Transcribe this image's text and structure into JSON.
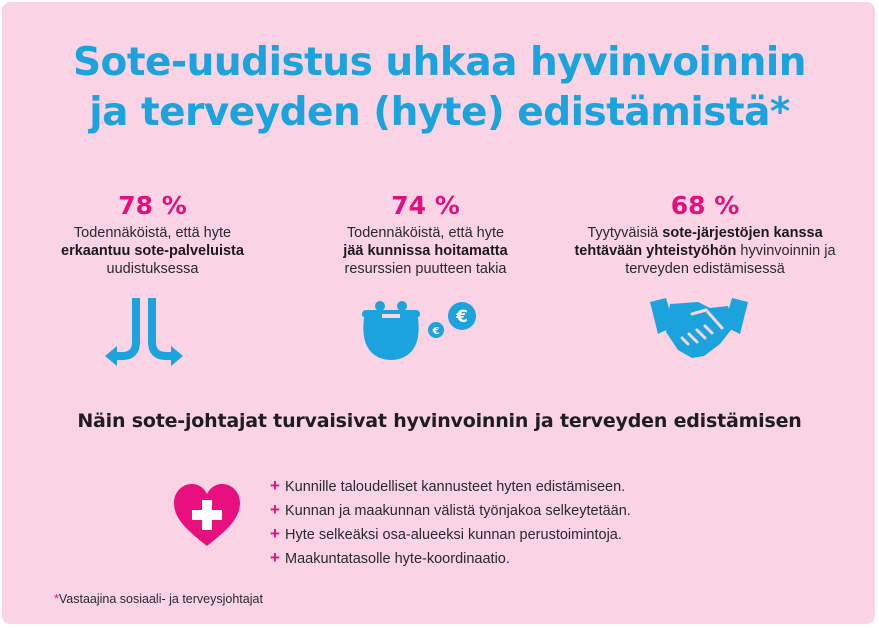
{
  "title": {
    "line1": "Sote-uudistus uhkaa hyvinvoinnin",
    "line2": "ja terveyden (hyte) edistämistä*"
  },
  "stats": [
    {
      "percent": "78 %",
      "text_before": "Todennäköistä, että hyte",
      "bold": "erkaantuu sote-palveluista",
      "text_after": "uudistuksessa",
      "icon": "diverging-arrows-icon"
    },
    {
      "percent": "74 %",
      "text_before": "Todennäköistä, että hyte",
      "bold": "jää kunnissa hoitamatta",
      "text_after": "resurssien puutteen takia",
      "icon": "coin-purse-icon"
    },
    {
      "percent": "68 %",
      "text_before": "Tyytyväisiä",
      "bold": "sote-järjestöjen kanssa tehtävään yhteistyöhön",
      "text_after": "hyvinvoinnin ja terveyden edistämisessä",
      "icon": "handshake-icon"
    }
  ],
  "subtitle": "Näin sote-johtajat turvaisivat hyvinvoinnin ja terveyden edistämisen",
  "measures": {
    "icon": "heart-plus-icon",
    "bullet": "+",
    "items": [
      "Kunnille taloudelliset kannusteet hyten edistämiseen.",
      "Kunnan ja maakunnan välistä työnjakoa selkeytetään.",
      "Hyte selkeäksi osa-alueeksi kunnan perustoimintoja.",
      "Maakuntatasolle hyte-koordinaatio."
    ]
  },
  "footnote": {
    "star": "*",
    "text": "Vastaajina sosiaali- ja terveysjohtajat"
  },
  "colors": {
    "background": "#fad4e4",
    "title_blue": "#1aa3dc",
    "accent_pink": "#e2107d",
    "heart_pink": "#e8107f"
  }
}
